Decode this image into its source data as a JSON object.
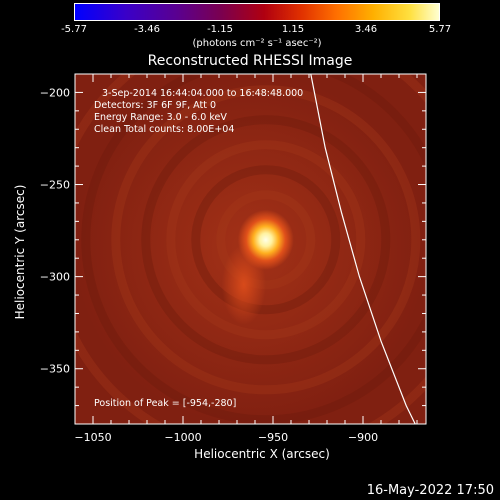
{
  "colorbar": {
    "ticks": [
      "-5.77",
      "-3.46",
      "-1.15",
      "1.15",
      "3.46",
      "5.77"
    ],
    "units": "(photons cm⁻² s⁻¹ asec⁻²)"
  },
  "title": "Reconstructed RHESSI Image",
  "annotations": {
    "time_range": "3-Sep-2014 16:44:04.000 to 16:48:48.000",
    "detectors": "Detectors: 3F 6F 9F, Att 0",
    "energy": "Energy Range: 3.0 - 6.0 keV",
    "clean": "Clean    Total counts: 8.00E+04",
    "peak": "Position of Peak = [-954,-280]"
  },
  "chart_data": {
    "type": "heatmap",
    "title": "Reconstructed RHESSI Image",
    "xlabel": "Heliocentric X (arcsec)",
    "ylabel": "Heliocentric Y (arcsec)",
    "xlim": [
      -1060,
      -865
    ],
    "ylim": [
      -380,
      -190
    ],
    "x_ticks": [
      -1050,
      -1000,
      -950,
      -900
    ],
    "y_ticks": [
      -200,
      -250,
      -300,
      -350
    ],
    "x_tick_labels": [
      "−1050",
      "−1000",
      "−950",
      "−900"
    ],
    "y_tick_labels": [
      "−200",
      "−250",
      "−300",
      "−350"
    ],
    "peak": {
      "x": -954,
      "y": -280
    },
    "colorbar_range": [
      -5.77,
      5.77
    ],
    "limb_curve": [
      [
        -929,
        -190
      ],
      [
        -921,
        -230
      ],
      [
        -912,
        -265
      ],
      [
        -902,
        -300
      ],
      [
        -890,
        -335
      ],
      [
        -876,
        -370
      ],
      [
        -871,
        -380
      ]
    ]
  },
  "footer": {
    "timestamp": "16-May-2022 17:50"
  },
  "colors": {
    "background": "#000000",
    "axes": "#ffffff",
    "limb": "#ffffff"
  }
}
